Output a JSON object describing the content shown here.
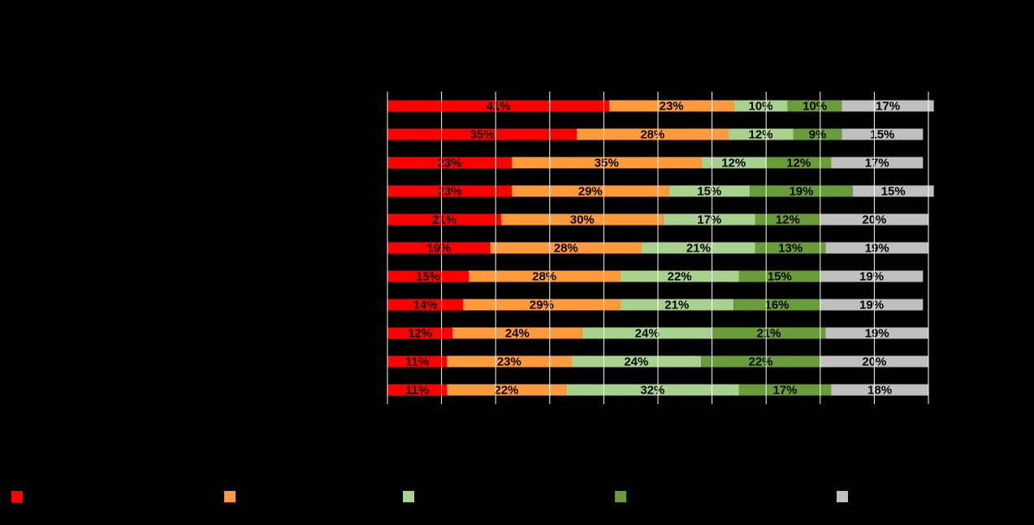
{
  "chart_data": {
    "type": "stacked-bar-horizontal",
    "categories": [
      null,
      null,
      null,
      null,
      null,
      null,
      null,
      null,
      null,
      null,
      null
    ],
    "xlim": [
      0,
      100
    ],
    "xticks": [
      0,
      10,
      20,
      30,
      40,
      50,
      60,
      70,
      80,
      90,
      100
    ],
    "grid": true,
    "series": [
      {
        "name": null,
        "color": "#ff0000",
        "values": [
          41,
          35,
          23,
          23,
          21,
          19,
          15,
          14,
          12,
          11,
          11
        ],
        "value_labels": [
          "41%",
          "35%",
          "23%",
          "23%",
          "21%",
          "19%",
          "15%",
          "14%",
          "12%",
          "11%",
          "11%"
        ]
      },
      {
        "name": null,
        "color": "#ff9a3c",
        "values": [
          23,
          28,
          35,
          29,
          30,
          28,
          28,
          29,
          24,
          23,
          22
        ],
        "value_labels": [
          "23%",
          "28%",
          "35%",
          "29%",
          "30%",
          "28%",
          "28%",
          "29%",
          "24%",
          "23%",
          "22%"
        ]
      },
      {
        "name": null,
        "color": "#a9d18e",
        "values": [
          10,
          12,
          12,
          15,
          17,
          21,
          22,
          21,
          24,
          24,
          32
        ],
        "value_labels": [
          "10%",
          "12%",
          "12%",
          "15%",
          "17%",
          "21%",
          "22%",
          "21%",
          "24%",
          "24%",
          "32%"
        ]
      },
      {
        "name": null,
        "color": "#6a9c3c",
        "values": [
          10,
          9,
          12,
          19,
          12,
          13,
          15,
          16,
          21,
          22,
          17
        ],
        "value_labels": [
          "10%",
          "9%",
          "12%",
          "19%",
          "12%",
          "13%",
          "15%",
          "16%",
          "21%",
          "22%",
          "17%"
        ]
      },
      {
        "name": null,
        "color": "#bfbfbf",
        "values": [
          17,
          15,
          17,
          15,
          20,
          19,
          19,
          19,
          19,
          20,
          18
        ],
        "value_labels": [
          "17%",
          "15%",
          "17%",
          "15%",
          "20%",
          "19%",
          "19%",
          "19%",
          "19%",
          "20%",
          "18%"
        ]
      }
    ]
  }
}
